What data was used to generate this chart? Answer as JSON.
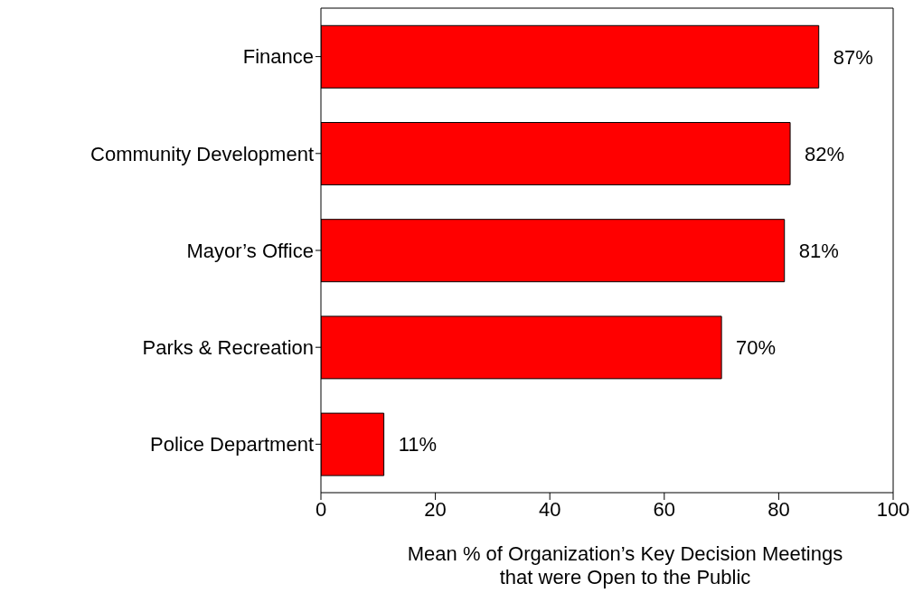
{
  "chart_data": {
    "type": "bar",
    "orientation": "horizontal",
    "categories": [
      "Finance",
      "Community Development",
      "Mayor’s Office",
      "Parks & Recreation",
      "Police Department"
    ],
    "values": [
      87,
      82,
      81,
      70,
      11
    ],
    "value_labels": [
      "87%",
      "82%",
      "81%",
      "70%",
      "11%"
    ],
    "color": "#ff0000",
    "xlim": [
      0,
      100
    ],
    "xticks": [
      0,
      20,
      40,
      60,
      80,
      100
    ],
    "xlabel": "Mean % of Organization’s Key Decision Meetings\nthat were Open to the Public"
  }
}
